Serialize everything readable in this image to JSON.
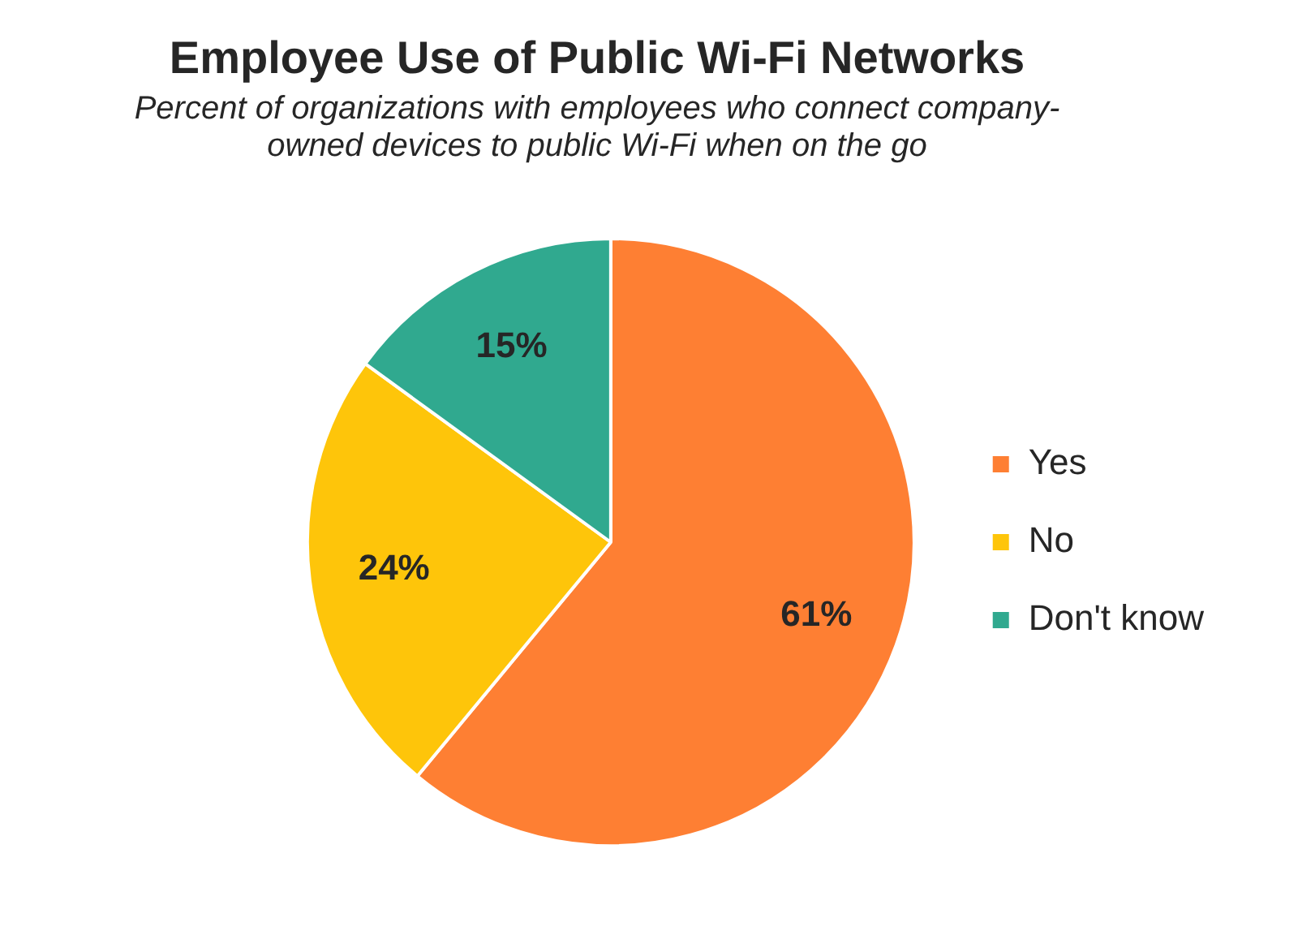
{
  "chart_data": {
    "type": "pie",
    "title": "Employee Use of Public Wi-Fi Networks",
    "subtitle": "Percent of organizations with employees who connect company-owned devices to public Wi-Fi when on the go",
    "categories": [
      "Yes",
      "No",
      "Don't know"
    ],
    "values": [
      61,
      24,
      15
    ],
    "colors": [
      "#fe7f33",
      "#fec50a",
      "#30a98f"
    ],
    "value_labels": [
      "61%",
      "24%",
      "15%"
    ],
    "legend": "right"
  }
}
